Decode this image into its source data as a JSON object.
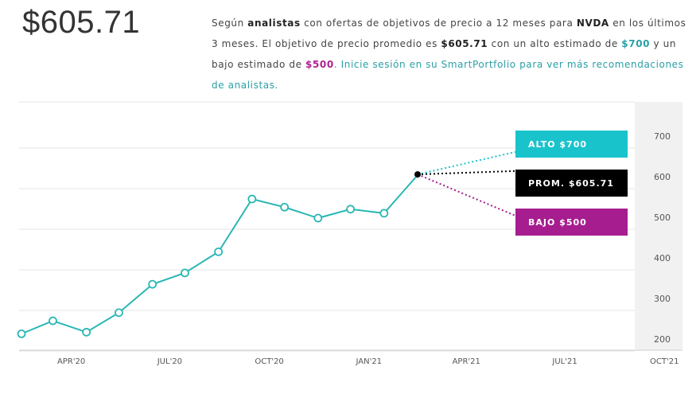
{
  "header": {
    "price": "$605.71",
    "desc_prefix": "Según ",
    "desc_analysts": "analistas",
    "desc_mid1": " con ofertas de objetivos de precio a 12 meses para ",
    "desc_ticker": "NVDA",
    "desc_mid2": " en los últimos 3 meses. El objetivo de precio promedio es ",
    "desc_avg": "$605.71",
    "desc_mid3": " con un alto estimado de ",
    "desc_high": "$700",
    "desc_mid4": " y un bajo estimado de ",
    "desc_low": "$500",
    "desc_link": ". Inicie sesión en su SmartPortfolio para ver más recomendaciones de analistas."
  },
  "colors": {
    "line": "#2bb7b5",
    "high": "#19c3cc",
    "avg": "#000000",
    "low": "#a61d8f",
    "forecast_band": "#f1f1f1",
    "grid": "#e6e6e6"
  },
  "chart_data": {
    "type": "line",
    "title": "",
    "xlabel": "",
    "ylabel": "",
    "ylim": [
      190,
      740
    ],
    "yticks": [
      200,
      300,
      400,
      500,
      600,
      700
    ],
    "xticks": [
      "APR'20",
      "JUL'20",
      "OCT'20",
      "JAN'21",
      "APR'21",
      "JUL'21",
      "OCT'21"
    ],
    "grid": true,
    "series": [
      {
        "values": [
          {
            "x": "2020-02-15",
            "y": 213
          },
          {
            "x": "2020-03-15",
            "y": 245
          },
          {
            "x": "2020-04-15",
            "y": 217
          },
          {
            "x": "2020-05-15",
            "y": 265
          },
          {
            "x": "2020-06-15",
            "y": 335
          },
          {
            "x": "2020-07-15",
            "y": 363
          },
          {
            "x": "2020-08-15",
            "y": 415
          },
          {
            "x": "2020-09-15",
            "y": 545
          },
          {
            "x": "2020-10-15",
            "y": 525
          },
          {
            "x": "2020-11-15",
            "y": 498
          },
          {
            "x": "2020-12-15",
            "y": 520
          },
          {
            "x": "2021-01-15",
            "y": 510
          },
          {
            "x": "2021-02-15",
            "y": 604
          }
        ]
      }
    ],
    "forecast": {
      "start": {
        "x": "2021-02-15",
        "y": 605.71
      },
      "end_x": "2021-06-01",
      "high": {
        "label": "ALTO $700",
        "value": 700
      },
      "avg": {
        "label": "PROM. $605.71",
        "value": 605.71
      },
      "low": {
        "label": "BAJO $500",
        "value": 500
      }
    }
  }
}
